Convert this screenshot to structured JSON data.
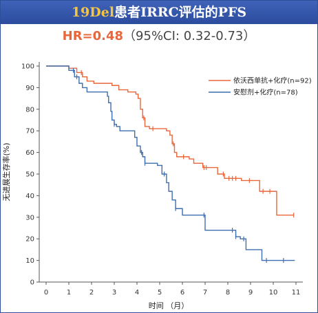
{
  "header": {
    "title_accent": "19Del",
    "title_rest": "患者IRRC评估的PFS",
    "hr_label": "HR=0.48",
    "ci_label": "（95%CI: 0.32-0.73）"
  },
  "chart_data": {
    "type": "line",
    "title": "19Del患者IRRC评估的PFS",
    "subtitle": "HR=0.48（95%CI: 0.32-0.73）",
    "xlabel": "时间 （月）",
    "ylabel": "无进展生存率(%)",
    "xlim": [
      0,
      11
    ],
    "ylim": [
      0,
      100
    ],
    "xticks": [
      "0",
      "1",
      "2",
      "3",
      "4",
      "5",
      "6",
      "7",
      "8",
      "9",
      "10",
      "11"
    ],
    "yticks": [
      "0",
      "10",
      "20",
      "30",
      "40",
      "50",
      "60",
      "70",
      "80",
      "90",
      "100"
    ],
    "legend_position": "top-right",
    "series": [
      {
        "name": "依沃西单抗+化疗(n=92)",
        "color": "#e8663a",
        "x": [
          0,
          1.0,
          1.35,
          1.6,
          1.8,
          2.1,
          2.9,
          3.2,
          3.6,
          3.95,
          4.05,
          4.15,
          4.25,
          4.35,
          4.55,
          5.3,
          5.45,
          5.55,
          5.65,
          5.75,
          6.3,
          6.5,
          6.9,
          7.55,
          7.85,
          8.6,
          9.4,
          10.15,
          10.9
        ],
        "y": [
          100,
          99,
          97,
          95,
          93,
          92,
          91,
          89,
          88,
          87,
          85,
          80,
          76,
          72,
          71,
          70,
          68,
          64,
          60,
          58,
          57,
          55,
          53,
          50,
          48,
          47,
          42,
          31,
          31
        ],
        "censor_x": [
          1.55,
          4.3,
          4.7,
          5.6,
          6.05,
          6.95,
          7.05,
          7.8,
          8.05,
          8.2,
          8.35,
          8.95,
          9.55,
          9.85,
          10.9
        ]
      },
      {
        "name": "安慰剂+化疗(n=78)",
        "color": "#3e6db0",
        "x": [
          0,
          1.0,
          1.25,
          1.45,
          1.6,
          1.8,
          2.7,
          2.75,
          2.85,
          2.9,
          3.0,
          3.1,
          3.25,
          3.9,
          4.0,
          4.15,
          4.25,
          4.35,
          4.9,
          5.1,
          5.3,
          5.4,
          5.55,
          5.7,
          6.0,
          7.0,
          8.2,
          8.35,
          8.55,
          8.8,
          9.5,
          10.95
        ],
        "y": [
          100,
          98,
          95,
          92,
          90,
          88,
          86,
          83,
          79,
          75,
          73,
          72,
          70,
          67,
          63,
          60,
          58,
          55,
          54,
          50,
          46,
          42,
          38,
          34,
          31,
          24,
          24,
          21,
          20,
          15,
          10,
          10
        ],
        "censor_x": [
          1.2,
          1.35,
          3.0,
          4.2,
          4.35,
          5.2,
          5.7,
          6.95,
          8.2,
          8.35,
          8.7,
          9.7,
          10.45
        ]
      }
    ]
  }
}
